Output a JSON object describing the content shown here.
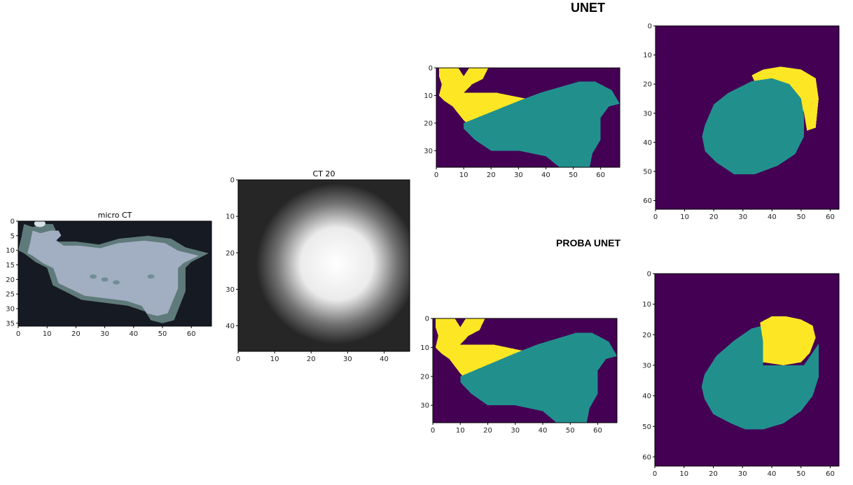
{
  "headings": {
    "unet": "UNET",
    "proba_unet": "PROBA UNET"
  },
  "colors": {
    "seg_background": "#440154",
    "seg_teal": "#21908d",
    "seg_yellow": "#fde725"
  },
  "chart_data": [
    {
      "id": "micro_ct",
      "type": "heatmap",
      "title": "micro CT",
      "xlim": [
        0,
        67
      ],
      "ylim": [
        36,
        0
      ],
      "xticks": [
        0,
        10,
        20,
        30,
        40,
        50,
        60
      ],
      "yticks": [
        0,
        5,
        10,
        15,
        20,
        25,
        30,
        35
      ],
      "colormap": "bone",
      "background_value": 0.12,
      "object": {
        "outline": [
          [
            2,
            1
          ],
          [
            5,
            2
          ],
          [
            9,
            1
          ],
          [
            12,
            1
          ],
          [
            13,
            3
          ],
          [
            11,
            5
          ],
          [
            14,
            7
          ],
          [
            20,
            7
          ],
          [
            28,
            8
          ],
          [
            35,
            6
          ],
          [
            45,
            5
          ],
          [
            53,
            6
          ],
          [
            58,
            9
          ],
          [
            66,
            11
          ],
          [
            60,
            14
          ],
          [
            58,
            16
          ],
          [
            58,
            24
          ],
          [
            56,
            29
          ],
          [
            54,
            34
          ],
          [
            50,
            35
          ],
          [
            46,
            34
          ],
          [
            44,
            31
          ],
          [
            38,
            29
          ],
          [
            30,
            28
          ],
          [
            22,
            27
          ],
          [
            16,
            24
          ],
          [
            12,
            22
          ],
          [
            10,
            16
          ],
          [
            6,
            14
          ],
          [
            2,
            11
          ],
          [
            0,
            10
          ],
          [
            1,
            6
          ]
        ],
        "value": 0.72
      }
    },
    {
      "id": "ct20",
      "type": "heatmap",
      "title": "CT 20",
      "xlim": [
        0,
        47
      ],
      "ylim": [
        47,
        0
      ],
      "xticks": [
        0,
        10,
        20,
        30,
        40
      ],
      "yticks": [
        0,
        10,
        20,
        30,
        40
      ],
      "colormap": "gray",
      "blob": {
        "center": [
          27,
          23
        ],
        "radius": 11,
        "peak": 1.0,
        "background": 0.15
      }
    },
    {
      "id": "unet_coronal",
      "type": "heatmap",
      "title": "",
      "xlim": [
        0,
        67
      ],
      "ylim": [
        36,
        0
      ],
      "xticks": [
        0,
        10,
        20,
        30,
        40,
        50,
        60
      ],
      "yticks": [
        0,
        10,
        20,
        30
      ],
      "colormap": "viridis",
      "regions": [
        {
          "class": "yellow",
          "polygon": [
            [
              1,
              0
            ],
            [
              8,
              0
            ],
            [
              10,
              3
            ],
            [
              12,
              0
            ],
            [
              19,
              0
            ],
            [
              17,
              4
            ],
            [
              13,
              6
            ],
            [
              10,
              9
            ],
            [
              22,
              9
            ],
            [
              32,
              11
            ],
            [
              36,
              11
            ],
            [
              30,
              14
            ],
            [
              20,
              17
            ],
            [
              11,
              20
            ],
            [
              10,
              19
            ],
            [
              6,
              14
            ],
            [
              3,
              12
            ],
            [
              1,
              10
            ],
            [
              2,
              6
            ],
            [
              1,
              3
            ]
          ]
        },
        {
          "class": "teal",
          "polygon": [
            [
              10,
              20
            ],
            [
              20,
              16
            ],
            [
              30,
              12
            ],
            [
              38,
              9
            ],
            [
              45,
              7
            ],
            [
              52,
              5
            ],
            [
              58,
              5
            ],
            [
              64,
              8
            ],
            [
              67,
              13
            ],
            [
              63,
              14
            ],
            [
              60,
              18
            ],
            [
              60,
              26
            ],
            [
              57,
              31
            ],
            [
              56,
              36
            ],
            [
              45,
              36
            ],
            [
              40,
              32
            ],
            [
              30,
              30
            ],
            [
              20,
              30
            ],
            [
              14,
              26
            ],
            [
              10,
              22
            ]
          ]
        }
      ]
    },
    {
      "id": "unet_axial",
      "type": "heatmap",
      "title": "",
      "xlim": [
        0,
        63
      ],
      "ylim": [
        63,
        0
      ],
      "xticks": [
        0,
        10,
        20,
        30,
        40,
        50,
        60
      ],
      "yticks": [
        0,
        10,
        20,
        30,
        40,
        50,
        60
      ],
      "colormap": "viridis",
      "regions": [
        {
          "class": "yellow",
          "polygon": [
            [
              33,
              17
            ],
            [
              37,
              15
            ],
            [
              43,
              14
            ],
            [
              50,
              15
            ],
            [
              55,
              18
            ],
            [
              56,
              25
            ],
            [
              55,
              35
            ],
            [
              52,
              36
            ],
            [
              51,
              30
            ],
            [
              49,
              24
            ],
            [
              46,
              20
            ],
            [
              40,
              18
            ],
            [
              34,
              19
            ]
          ]
        },
        {
          "class": "teal",
          "polygon": [
            [
              17,
              34
            ],
            [
              20,
              27
            ],
            [
              25,
              23
            ],
            [
              33,
              19
            ],
            [
              40,
              18
            ],
            [
              46,
              20
            ],
            [
              50,
              25
            ],
            [
              51,
              31
            ],
            [
              51,
              38
            ],
            [
              48,
              44
            ],
            [
              42,
              48
            ],
            [
              34,
              51
            ],
            [
              27,
              51
            ],
            [
              21,
              47
            ],
            [
              17,
              43
            ],
            [
              16,
              38
            ]
          ]
        }
      ]
    },
    {
      "id": "proba_coronal",
      "type": "heatmap",
      "title": "",
      "xlim": [
        0,
        67
      ],
      "ylim": [
        36,
        0
      ],
      "xticks": [
        0,
        10,
        20,
        30,
        40,
        50,
        60
      ],
      "yticks": [
        0,
        10,
        20,
        30
      ],
      "colormap": "viridis",
      "regions": [
        {
          "class": "yellow",
          "polygon": [
            [
              1,
              0
            ],
            [
              8,
              0
            ],
            [
              10,
              3
            ],
            [
              12,
              0
            ],
            [
              19,
              0
            ],
            [
              17,
              4
            ],
            [
              13,
              6
            ],
            [
              10,
              9
            ],
            [
              22,
              9
            ],
            [
              32,
              11
            ],
            [
              36,
              11
            ],
            [
              30,
              14
            ],
            [
              20,
              17
            ],
            [
              11,
              20
            ],
            [
              10,
              19
            ],
            [
              6,
              14
            ],
            [
              3,
              12
            ],
            [
              1,
              10
            ],
            [
              2,
              6
            ],
            [
              1,
              3
            ]
          ]
        },
        {
          "class": "teal",
          "polygon": [
            [
              10,
              20
            ],
            [
              20,
              16
            ],
            [
              30,
              12
            ],
            [
              38,
              9
            ],
            [
              45,
              7
            ],
            [
              52,
              5
            ],
            [
              58,
              5
            ],
            [
              64,
              8
            ],
            [
              67,
              13
            ],
            [
              63,
              14
            ],
            [
              60,
              18
            ],
            [
              60,
              26
            ],
            [
              57,
              31
            ],
            [
              56,
              36
            ],
            [
              45,
              36
            ],
            [
              40,
              32
            ],
            [
              30,
              30
            ],
            [
              20,
              30
            ],
            [
              14,
              26
            ],
            [
              10,
              22
            ]
          ]
        }
      ]
    },
    {
      "id": "proba_axial",
      "type": "heatmap",
      "title": "",
      "xlim": [
        0,
        63
      ],
      "ylim": [
        63,
        0
      ],
      "xticks": [
        0,
        10,
        20,
        30,
        40,
        50,
        60
      ],
      "yticks": [
        0,
        10,
        20,
        30,
        40,
        50,
        60
      ],
      "colormap": "viridis",
      "regions": [
        {
          "class": "teal",
          "polygon": [
            [
              17,
              33
            ],
            [
              21,
              27
            ],
            [
              27,
              22
            ],
            [
              33,
              18
            ],
            [
              37,
              17
            ],
            [
              38,
              22
            ],
            [
              37,
              30
            ],
            [
              44,
              30
            ],
            [
              51,
              30
            ],
            [
              56,
              23
            ],
            [
              56,
              34
            ],
            [
              54,
              40
            ],
            [
              50,
              45
            ],
            [
              44,
              49
            ],
            [
              37,
              51
            ],
            [
              31,
              51
            ],
            [
              26,
              49
            ],
            [
              20,
              46
            ],
            [
              17,
              41
            ],
            [
              16,
              37
            ]
          ]
        },
        {
          "class": "yellow",
          "polygon": [
            [
              36,
              16
            ],
            [
              40,
              14
            ],
            [
              45,
              14
            ],
            [
              50,
              15
            ],
            [
              54,
              17
            ],
            [
              55,
              21
            ],
            [
              53,
              26
            ],
            [
              50,
              29
            ],
            [
              44,
              30
            ],
            [
              37,
              29
            ],
            [
              37,
              22
            ]
          ]
        }
      ]
    }
  ]
}
